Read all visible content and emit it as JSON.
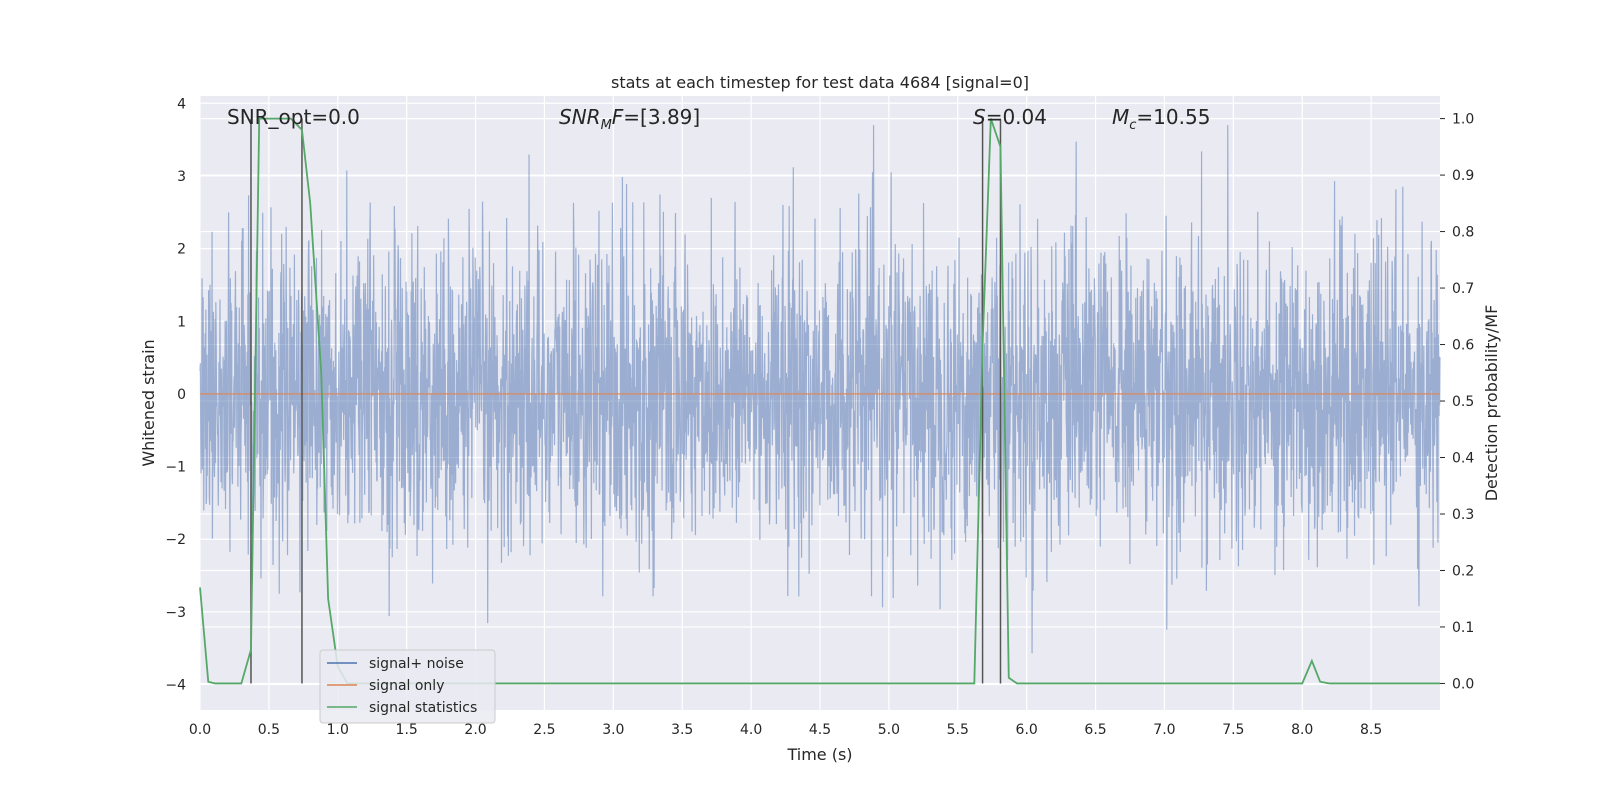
{
  "chart_data": {
    "type": "line",
    "title": "stats at each timestep for test data 4684 [signal=0]",
    "xlabel": "Time (s)",
    "ylabel": "Whitened strain",
    "ylabel_right": "Detection probability/MF",
    "xlim": [
      0,
      9.0
    ],
    "ylim": [
      -4.35,
      4.1
    ],
    "ylim_right": [
      -0.047,
      1.04
    ],
    "x_ticks": [
      "0.0",
      "0.5",
      "1.0",
      "1.5",
      "2.0",
      "2.5",
      "3.0",
      "3.5",
      "4.0",
      "4.5",
      "5.0",
      "5.5",
      "6.0",
      "6.5",
      "7.0",
      "7.5",
      "8.0",
      "8.5"
    ],
    "y_ticks": [
      "4",
      "3",
      "2",
      "1",
      "0",
      "−1",
      "−2",
      "−3",
      "−4"
    ],
    "y_ticks_right": [
      "1.0",
      "0.9",
      "0.8",
      "0.7",
      "0.6",
      "0.5",
      "0.4",
      "0.3",
      "0.2",
      "0.1",
      "0.0"
    ],
    "grid": true,
    "legend_position": "lower-left",
    "annotations": {
      "snr_opt": "SNR_opt=0.0",
      "snr_mf_italic": "SNR",
      "snr_mf_sub": "M",
      "snr_mf_italic2": "F",
      "snr_mf_value": "=[3.89]",
      "s_italic": "S",
      "s_value": "=0.04",
      "mc_italic": "M",
      "mc_sub": "c",
      "mc_value": "=10.55"
    },
    "vertical_lines_x": [
      0.37,
      0.74,
      5.68,
      5.81
    ],
    "series": [
      {
        "name": "signal+ noise",
        "color": "#4c72b0",
        "description_values": "dense whitened noise, roughly N(0,1), spanning about -4 to 3.7",
        "approx_envelope": [
          -4.0,
          3.7
        ]
      },
      {
        "name": "signal only",
        "color": "#dd8452",
        "x": [
          0,
          9.0
        ],
        "y": [
          0,
          0
        ]
      },
      {
        "name": "signal statistics",
        "color": "#55a868",
        "axis": "right",
        "x": [
          0.0,
          0.06,
          0.11,
          0.3,
          0.37,
          0.43,
          0.5,
          0.58,
          0.66,
          0.74,
          0.8,
          0.88,
          0.93,
          1.0,
          1.07,
          5.62,
          5.68,
          5.74,
          5.81,
          5.87,
          5.93,
          6.0,
          7.95,
          8.0,
          8.07,
          8.13,
          8.2,
          9.0
        ],
        "y": [
          0.17,
          0.003,
          0.0,
          0.0,
          0.06,
          1.0,
          1.0,
          1.0,
          1.0,
          0.98,
          0.85,
          0.55,
          0.15,
          0.03,
          0.0,
          0.0,
          0.6,
          1.0,
          0.95,
          0.01,
          0.0,
          0.0,
          0.0,
          0.0,
          0.04,
          0.003,
          0.0,
          0.0
        ]
      }
    ]
  },
  "legend": {
    "items": [
      {
        "label": "signal+ noise",
        "color": "#4c72b0"
      },
      {
        "label": "signal only",
        "color": "#dd8452"
      },
      {
        "label": "signal statistics",
        "color": "#55a868"
      }
    ]
  }
}
